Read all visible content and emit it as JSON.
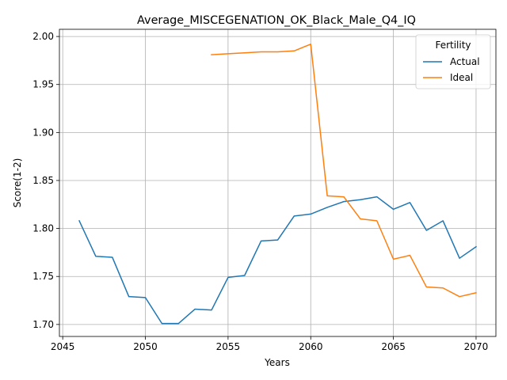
{
  "chart_data": {
    "type": "line",
    "title": "Average_MISCEGENATION_OK_Black_Male_Q4_IQ",
    "xlabel": "Years",
    "ylabel": "Score(1-2)",
    "xlim": [
      2044.8,
      2071.2
    ],
    "ylim": [
      1.6875,
      2.0075
    ],
    "xticks": [
      2045,
      2050,
      2055,
      2060,
      2065,
      2070
    ],
    "yticks": [
      1.7,
      1.75,
      1.8,
      1.85,
      1.9,
      1.95,
      2.0
    ],
    "xtick_labels": [
      "2045",
      "2050",
      "2055",
      "2060",
      "2065",
      "2070"
    ],
    "ytick_labels": [
      "1.70",
      "1.75",
      "1.80",
      "1.85",
      "1.90",
      "1.95",
      "2.00"
    ],
    "grid": true,
    "legend": {
      "title": "Fertility",
      "position": "top-right"
    },
    "series": [
      {
        "name": "Actual",
        "color": "#1f77b4",
        "x": [
          2046,
          2047,
          2048,
          2049,
          2050,
          2051,
          2052,
          2053,
          2054,
          2055,
          2056,
          2057,
          2058,
          2059,
          2060,
          2061,
          2062,
          2063,
          2064,
          2065,
          2066,
          2067,
          2068,
          2069,
          2070
        ],
        "values": [
          1.808,
          1.771,
          1.77,
          1.729,
          1.728,
          1.701,
          1.701,
          1.716,
          1.715,
          1.749,
          1.751,
          1.787,
          1.788,
          1.813,
          1.815,
          1.822,
          1.828,
          1.83,
          1.833,
          1.82,
          1.827,
          1.798,
          1.808,
          1.769,
          1.781
        ]
      },
      {
        "name": "Ideal",
        "color": "#ff7f0e",
        "x": [
          2054,
          2055,
          2056,
          2057,
          2058,
          2059,
          2060,
          2061,
          2062,
          2063,
          2064,
          2065,
          2066,
          2067,
          2068,
          2069,
          2070
        ],
        "values": [
          1.981,
          1.982,
          1.983,
          1.984,
          1.984,
          1.985,
          1.992,
          1.834,
          1.833,
          1.81,
          1.808,
          1.768,
          1.772,
          1.739,
          1.738,
          1.729,
          1.733
        ]
      }
    ]
  }
}
